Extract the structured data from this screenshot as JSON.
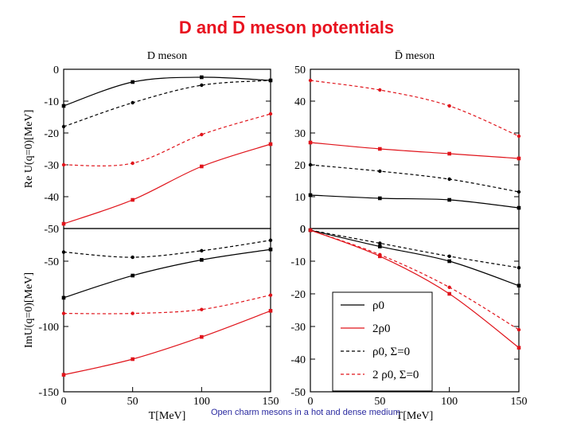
{
  "slide": {
    "title_before": "D and ",
    "title_bar": "D",
    "title_after": " meson potentials",
    "footer": "Open charm mesons in a hot and dense medium"
  },
  "colors": {
    "black": "#000000",
    "red": "#e0141b"
  },
  "chart_data": [
    {
      "type": "line",
      "title": "D meson",
      "ylabel": "Re U(q=0)[MeV]",
      "xlim": [
        0,
        150
      ],
      "ylim": [
        -50,
        0
      ],
      "yticks": [
        0,
        -10,
        -20,
        -30,
        -40,
        -50
      ],
      "series": [
        {
          "name": "ρ0",
          "color": "#000000",
          "dash": false,
          "x": [
            0,
            50,
            100,
            150
          ],
          "y": [
            -11.5,
            -4,
            -2.5,
            -3.5
          ]
        },
        {
          "name": "2ρ0",
          "color": "#e0141b",
          "dash": false,
          "x": [
            0,
            50,
            100,
            150
          ],
          "y": [
            -48.5,
            -41,
            -30.5,
            -23.5
          ]
        },
        {
          "name": "ρ0, Σ=0",
          "color": "#000000",
          "dash": true,
          "x": [
            0,
            50,
            100,
            150
          ],
          "y": [
            -18,
            -10.5,
            -5,
            -3.5
          ]
        },
        {
          "name": "2 ρ0, Σ=0",
          "color": "#e0141b",
          "dash": true,
          "x": [
            0,
            50,
            100,
            150
          ],
          "y": [
            -30,
            -29.5,
            -20.5,
            -14
          ]
        }
      ]
    },
    {
      "type": "line",
      "title": "D̄ meson",
      "xlim": [
        0,
        150
      ],
      "ylim": [
        0,
        50
      ],
      "yticks": [
        50,
        40,
        30,
        20,
        10,
        0
      ],
      "series": [
        {
          "name": "ρ0",
          "color": "#000000",
          "dash": false,
          "x": [
            0,
            50,
            100,
            150
          ],
          "y": [
            10.5,
            9.5,
            9,
            6.5
          ]
        },
        {
          "name": "2ρ0",
          "color": "#e0141b",
          "dash": false,
          "x": [
            0,
            50,
            100,
            150
          ],
          "y": [
            27,
            25,
            23.5,
            22
          ]
        },
        {
          "name": "ρ0, Σ=0",
          "color": "#000000",
          "dash": true,
          "x": [
            0,
            50,
            100,
            150
          ],
          "y": [
            20,
            18,
            15.5,
            11.5
          ]
        },
        {
          "name": "2 ρ0, Σ=0",
          "color": "#e0141b",
          "dash": true,
          "x": [
            0,
            50,
            100,
            150
          ],
          "y": [
            46.5,
            43.5,
            38.5,
            29
          ]
        }
      ]
    },
    {
      "type": "line",
      "ylabel": "ImU(q=0)[MeV]",
      "xlabel": "T[MeV]",
      "xlim": [
        0,
        150
      ],
      "ylim": [
        -150,
        -25
      ],
      "xticks": [
        0,
        50,
        100,
        150
      ],
      "yticks": [
        -50,
        -100,
        -150
      ],
      "series": [
        {
          "name": "ρ0",
          "color": "#000000",
          "dash": false,
          "x": [
            0,
            50,
            100,
            150
          ],
          "y": [
            -78,
            -61,
            -49,
            -41
          ]
        },
        {
          "name": "2ρ0",
          "color": "#e0141b",
          "dash": false,
          "x": [
            0,
            50,
            100,
            150
          ],
          "y": [
            -137,
            -125,
            -108,
            -88
          ]
        },
        {
          "name": "ρ0, Σ=0",
          "color": "#000000",
          "dash": true,
          "x": [
            0,
            50,
            100,
            150
          ],
          "y": [
            -43,
            -47,
            -42,
            -34
          ]
        },
        {
          "name": "2 ρ0, Σ=0",
          "color": "#e0141b",
          "dash": true,
          "x": [
            0,
            50,
            100,
            150
          ],
          "y": [
            -90,
            -90,
            -87,
            -76
          ]
        }
      ]
    },
    {
      "type": "line",
      "xlabel": "T[MeV]",
      "xlim": [
        0,
        150
      ],
      "ylim": [
        -50,
        0
      ],
      "xticks": [
        0,
        50,
        100,
        150
      ],
      "yticks": [
        0,
        -10,
        -20,
        -30,
        -40,
        -50
      ],
      "legend": "center-right",
      "series": [
        {
          "name": "ρ0",
          "color": "#000000",
          "dash": false,
          "x": [
            0,
            50,
            100,
            150
          ],
          "y": [
            -0.5,
            -5.5,
            -10,
            -17.5
          ]
        },
        {
          "name": "2ρ0",
          "color": "#e0141b",
          "dash": false,
          "x": [
            0,
            50,
            100,
            150
          ],
          "y": [
            -0.5,
            -8.5,
            -20,
            -36.5
          ]
        },
        {
          "name": "ρ0, Σ=0",
          "color": "#000000",
          "dash": true,
          "x": [
            0,
            50,
            100,
            150
          ],
          "y": [
            -0.5,
            -4.5,
            -8.5,
            -12
          ]
        },
        {
          "name": "2 ρ0, Σ=0",
          "color": "#e0141b",
          "dash": true,
          "x": [
            0,
            50,
            100,
            150
          ],
          "y": [
            -0.5,
            -8,
            -18,
            -31
          ]
        }
      ]
    }
  ]
}
